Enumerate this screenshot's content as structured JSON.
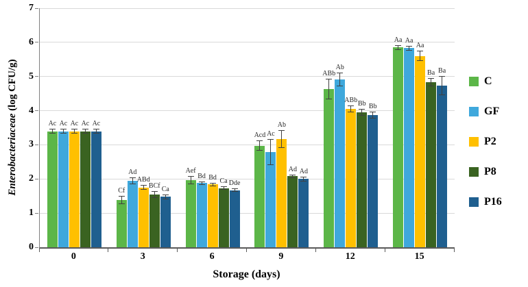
{
  "chart_data": {
    "type": "bar",
    "title": "",
    "xlabel": "Storage (days)",
    "ylabel": {
      "italic": "Enterobacteriaceae",
      "normal": " (log CFU/g)"
    },
    "ylim": [
      0,
      7
    ],
    "yticks": [
      "0",
      "1",
      "2",
      "3",
      "4",
      "5",
      "6",
      "7"
    ],
    "categories": [
      "0",
      "3",
      "6",
      "9",
      "12",
      "15"
    ],
    "grid": true,
    "legend_position": "right",
    "error_bar_color": "#404040",
    "series": [
      {
        "name": "C",
        "color": "#5CB648",
        "values": [
          3.4,
          1.38,
          1.97,
          2.97,
          4.63,
          5.85
        ],
        "errors": [
          0.07,
          0.12,
          0.12,
          0.15,
          0.3,
          0.07
        ],
        "labels": [
          "Ac",
          "Cf",
          "Aef",
          "Acd",
          "ABb",
          "Aa"
        ]
      },
      {
        "name": "GF",
        "color": "#3FA8DC",
        "values": [
          3.4,
          1.95,
          1.88,
          2.78,
          4.92,
          5.83
        ],
        "errors": [
          0.07,
          0.1,
          0.05,
          0.38,
          0.2,
          0.07
        ],
        "labels": [
          "Ac",
          "Ad",
          "Bd",
          "Ac",
          "Ab",
          "Aa"
        ]
      },
      {
        "name": "P2",
        "color": "#FFC000",
        "values": [
          3.4,
          1.75,
          1.84,
          3.17,
          4.05,
          5.6
        ],
        "errors": [
          0.07,
          0.07,
          0.05,
          0.27,
          0.1,
          0.15
        ],
        "labels": [
          "Ac",
          "ABd",
          "Bd",
          "Ab",
          "ABb",
          "Aa"
        ]
      },
      {
        "name": "P8",
        "color": "#3A6321",
        "values": [
          3.4,
          1.55,
          1.73,
          2.08,
          3.95,
          4.83
        ],
        "errors": [
          0.07,
          0.1,
          0.05,
          0.05,
          0.1,
          0.12
        ],
        "labels": [
          "Ac",
          "BCf",
          "Ca",
          "Ad",
          "Bb",
          "Ba"
        ]
      },
      {
        "name": "P16",
        "color": "#1F5F8F",
        "values": [
          3.4,
          1.48,
          1.67,
          2.0,
          3.88,
          4.73
        ],
        "errors": [
          0.07,
          0.07,
          0.05,
          0.07,
          0.1,
          0.28
        ],
        "labels": [
          "Ac",
          "Ca",
          "Dde",
          "Ad",
          "Bb",
          "Ba"
        ]
      }
    ]
  }
}
